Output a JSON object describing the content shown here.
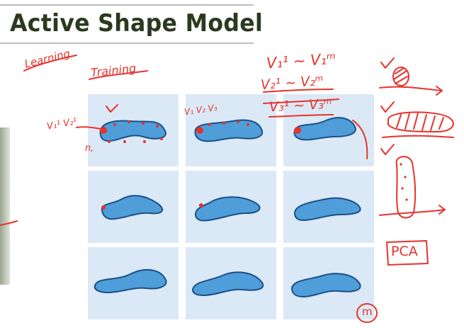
{
  "slide": {
    "title": "Active Shape Model"
  },
  "annotations": {
    "learning": "Learning",
    "training": "Training",
    "pca": "PCA",
    "m": "m",
    "n1": "n,",
    "point_labels_1": "V₁¹ V₂¹",
    "point_labels_2": "V₁ V₂ V₃",
    "eq1": "V₁¹ ~ V₁ᵐ",
    "eq2": "V₂¹ ~ V₂ᵐ",
    "eq3": "V₃¹ ~ V₃ᵐ"
  },
  "colors": {
    "shape_fill": "#4f9ed9",
    "shape_stroke": "#1b4f86",
    "cell_bg": "#dbe9f6",
    "ink": "#e8322b",
    "title": "#2b3a1f"
  },
  "grid": {
    "rows": 3,
    "cols": 3
  }
}
